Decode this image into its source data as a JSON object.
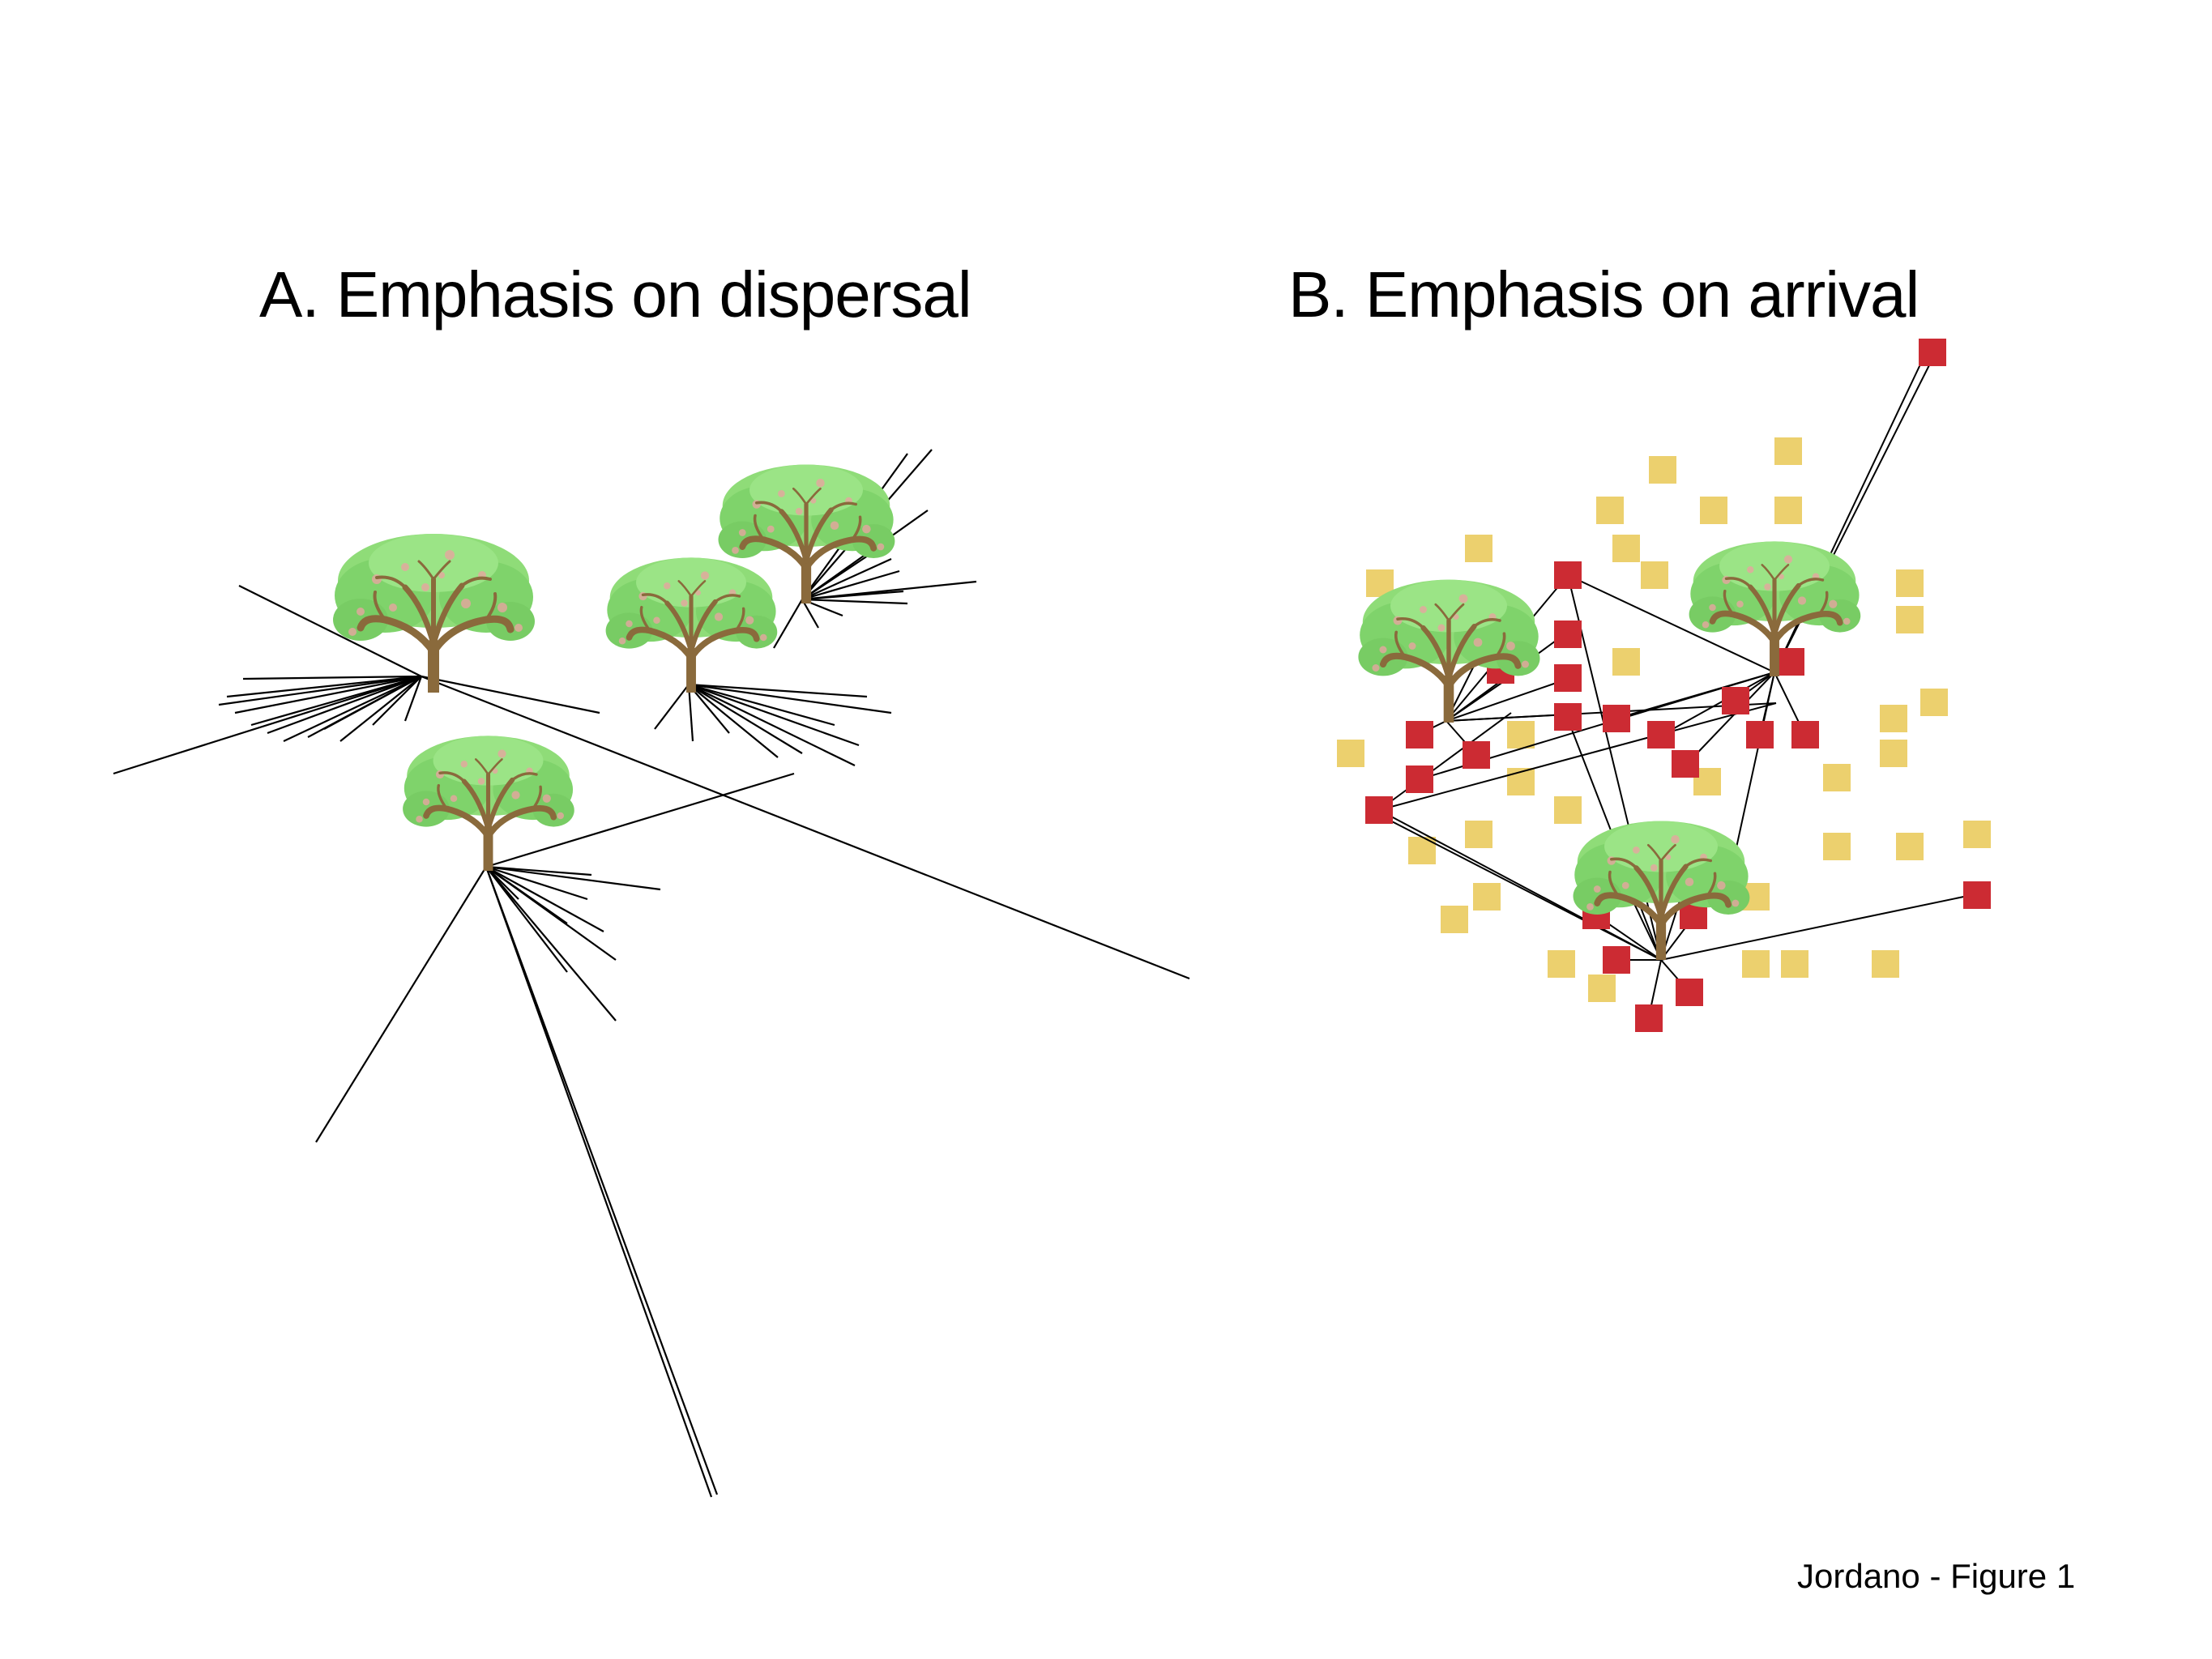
{
  "panel_a": {
    "title": "A. Emphasis on dispersal"
  },
  "panel_b": {
    "title": "B. Emphasis on arrival"
  },
  "caption": "Jordano - Figure 1",
  "colors": {
    "foliage": "#7fd36b",
    "foliage_dark": "#5fb84f",
    "branch": "#8a6a3c",
    "berry": "#e7a6a0",
    "seed_arrived": "#cc2b33",
    "microsite_empty": "#ecd06e",
    "line": "#000000"
  }
}
